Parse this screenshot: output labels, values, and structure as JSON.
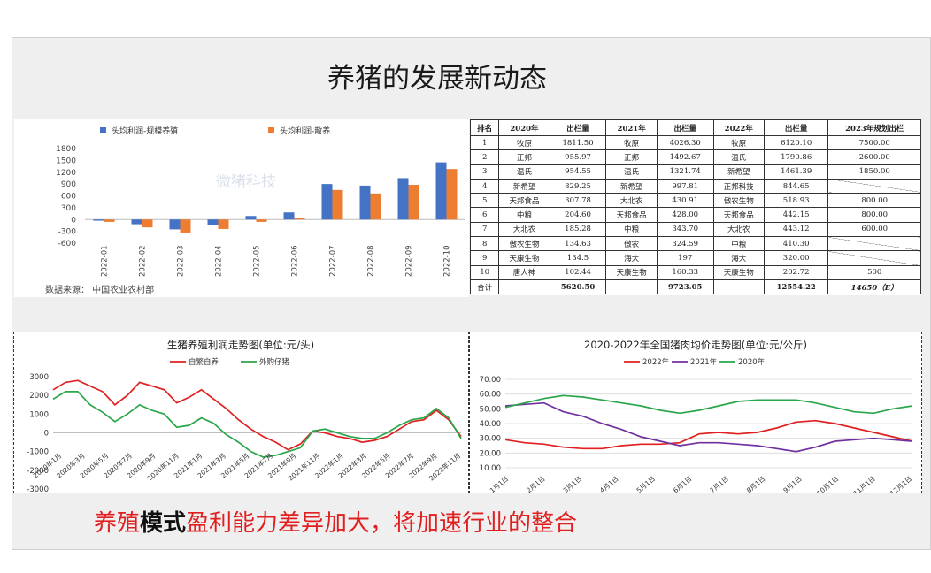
{
  "slide": {
    "title": "养猪的发展新动态",
    "conclusion_a": "养殖",
    "conclusion_b": "模式",
    "conclusion_c": "盈利能力差异加大，将加速行业的整合"
  },
  "colors": {
    "red": "#e02020",
    "bar_blue": "#4472c4",
    "bar_orange": "#ed7d31",
    "green": "#2aa64a",
    "purple": "#7030a0"
  },
  "chart_data": [
    {
      "type": "bar",
      "legend": [
        "头均利润-规模养殖",
        "头均利润-散养"
      ],
      "watermark": "微猪科技",
      "source": "数据来源：  中国农业农村部",
      "categories": [
        "2022-01",
        "2022-02",
        "2022-03",
        "2022-04",
        "2022-05",
        "2022-06",
        "2022-07",
        "2022-08",
        "2022-09",
        "2022-10"
      ],
      "series": [
        {
          "name": "头均利润-规模养殖",
          "values": [
            -30,
            -120,
            -250,
            -150,
            90,
            180,
            900,
            860,
            1050,
            1450
          ]
        },
        {
          "name": "头均利润-散养",
          "values": [
            -60,
            -200,
            -330,
            -240,
            -60,
            30,
            750,
            660,
            880,
            1280
          ]
        }
      ],
      "yticks": [
        "1800",
        "1500",
        "1200",
        "900",
        "600",
        "300",
        "0",
        "-300",
        "-600"
      ],
      "ylim": [
        -600,
        1800
      ]
    },
    {
      "type": "line",
      "title": "生猪养殖利润走势图(单位:元/头)",
      "legend": [
        "自繁自养",
        "外购仔猪"
      ],
      "yticks": [
        "3000",
        "2000",
        "1000",
        "0",
        "-1000",
        "-2000",
        "-3000"
      ],
      "ylim": [
        -3000,
        3000
      ],
      "xticks": [
        "2020年1月",
        "2020年3月",
        "2020年5月",
        "2020年7月",
        "2020年9月",
        "2020年11月",
        "2021年1月",
        "2021年3月",
        "2021年5月",
        "2021年7月",
        "2021年9月",
        "2021年11月",
        "2022年1月",
        "2022年3月",
        "2022年5月",
        "2022年7月",
        "2022年9月",
        "2022年11月"
      ],
      "series": [
        {
          "name": "自繁自养",
          "values": [
            2300,
            2700,
            2800,
            2500,
            2200,
            1500,
            2000,
            2700,
            2500,
            2300,
            1600,
            1900,
            2300,
            1800,
            1300,
            700,
            200,
            -200,
            -500,
            -900,
            -600,
            100,
            0,
            -200,
            -300,
            -500,
            -400,
            -200,
            200,
            600,
            700,
            1200,
            700,
            -200
          ]
        },
        {
          "name": "外购仔猪",
          "values": [
            1800,
            2200,
            2200,
            1500,
            1100,
            600,
            1000,
            1500,
            1200,
            1000,
            300,
            400,
            800,
            500,
            -100,
            -500,
            -1000,
            -1300,
            -1200,
            -1000,
            -800,
            100,
            200,
            0,
            -200,
            -300,
            -300,
            0,
            400,
            700,
            800,
            1300,
            800,
            -300
          ]
        }
      ]
    },
    {
      "type": "line",
      "title": "2020-2022年全国猪肉均价走势图(单位:元/公斤)",
      "legend": [
        "2022年",
        "2021年",
        "2020年"
      ],
      "yticks": [
        "70.00",
        "60.00",
        "50.00",
        "40.00",
        "30.00",
        "20.00",
        "10.00"
      ],
      "ylim": [
        10,
        70
      ],
      "xticks": [
        "1月1日",
        "2月1日",
        "3月1日",
        "4月1日",
        "5月1日",
        "6月1日",
        "7月1日",
        "8月1日",
        "9月1日",
        "10月1日",
        "11月1日",
        "12月1日"
      ],
      "series": [
        {
          "name": "2022年",
          "values": [
            29,
            27,
            26,
            24,
            23,
            23,
            25,
            26,
            26,
            27,
            33,
            34,
            33,
            34,
            37,
            41,
            42,
            40,
            37,
            34,
            31,
            28
          ]
        },
        {
          "name": "2021年",
          "values": [
            52,
            53,
            54,
            48,
            45,
            40,
            36,
            31,
            28,
            25,
            27,
            27,
            26,
            25,
            23,
            21,
            24,
            28,
            29,
            30,
            29,
            28
          ]
        },
        {
          "name": "2020年",
          "values": [
            51,
            54,
            57,
            59,
            58,
            56,
            54,
            52,
            49,
            47,
            49,
            52,
            55,
            56,
            56,
            56,
            54,
            51,
            48,
            47,
            50,
            52
          ]
        }
      ]
    }
  ],
  "table": {
    "headers": [
      "排名",
      "2020年",
      "出栏量",
      "2021年",
      "出栏量",
      "2022年",
      "出栏量",
      "2023年规划出栏"
    ],
    "rows": [
      [
        "1",
        "牧原",
        "1811.50",
        "牧原",
        "4026.30",
        "牧原",
        "6120.10",
        "7500.00"
      ],
      [
        "2",
        "正邦",
        "955.97",
        "正邦",
        "1492.67",
        "温氏",
        "1790.86",
        "2600.00"
      ],
      [
        "3",
        "温氏",
        "954.55",
        "温氏",
        "1321.74",
        "新希望",
        "1461.39",
        "1850.00"
      ],
      [
        "4",
        "新希望",
        "829.25",
        "新希望",
        "997.81",
        "正邦科技",
        "844.65",
        ""
      ],
      [
        "5",
        "天邦食品",
        "307.78",
        "大北农",
        "430.91",
        "傲农生物",
        "518.93",
        "800.00"
      ],
      [
        "6",
        "中粮",
        "204.60",
        "天邦食品",
        "428.00",
        "天邦食品",
        "442.15",
        "800.00"
      ],
      [
        "7",
        "大北农",
        "185.28",
        "中粮",
        "343.70",
        "大北农",
        "443.12",
        "600.00"
      ],
      [
        "8",
        "傲农生物",
        "134.63",
        "傲农",
        "324.59",
        "中粮",
        "410.30",
        ""
      ],
      [
        "9",
        "天康生物",
        "134.5",
        "海大",
        "197",
        "海大",
        "320.00",
        ""
      ],
      [
        "10",
        "唐人神",
        "102.44",
        "天康生物",
        "160.33",
        "天康生物",
        "202.72",
        "500"
      ],
      [
        "合计",
        "",
        "5620.50",
        "",
        "9723.05",
        "",
        "12554.22",
        "14650（E）"
      ]
    ]
  }
}
